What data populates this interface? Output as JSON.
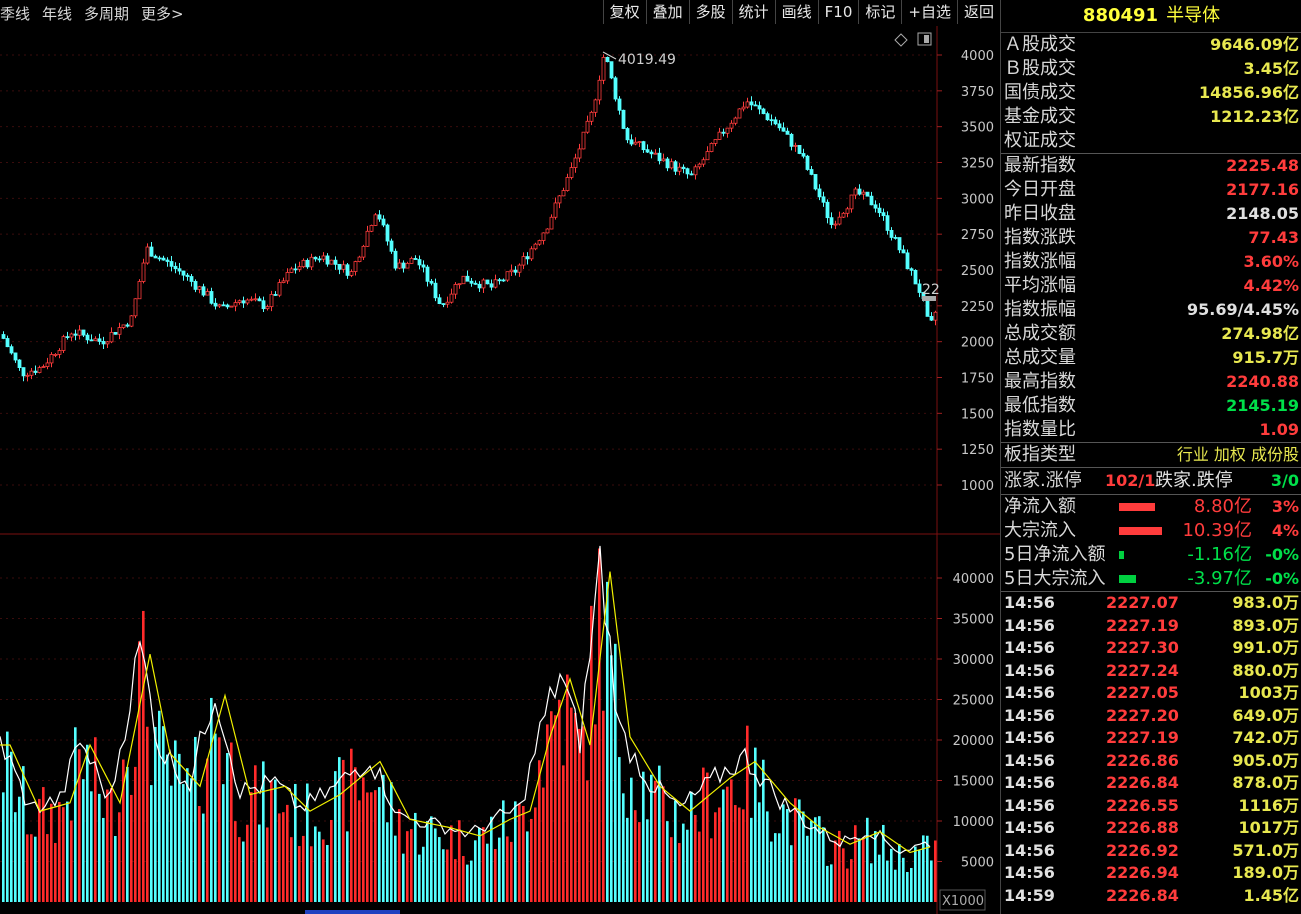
{
  "toolbar": {
    "left": [
      "季线",
      "年线",
      "多周期",
      "更多>"
    ],
    "right": [
      "复权",
      "叠加",
      "多股",
      "统计",
      "画线",
      "F10",
      "标记",
      "+自选",
      "返回"
    ]
  },
  "price_axis": {
    "ticks": [
      "4000",
      "3750",
      "3500",
      "3250",
      "3000",
      "2750",
      "2500",
      "2250",
      "2000",
      "1750",
      "1500",
      "1250",
      "1000"
    ],
    "peak_label": "4019.49",
    "last_label": "22"
  },
  "volume_axis": {
    "ticks": [
      "40000",
      "35000",
      "30000",
      "25000",
      "20000",
      "15000",
      "10000",
      "5000"
    ],
    "unit": "X1000"
  },
  "chart_data": {
    "type": "candlestick+bar",
    "price": {
      "ylim": [
        1000,
        4000
      ],
      "path": [
        [
          0,
          2050
        ],
        [
          20,
          1780
        ],
        [
          40,
          1820
        ],
        [
          70,
          2070
        ],
        [
          100,
          2000
        ],
        [
          130,
          2160
        ],
        [
          145,
          2650
        ],
        [
          180,
          2480
        ],
        [
          200,
          2360
        ],
        [
          220,
          2220
        ],
        [
          240,
          2300
        ],
        [
          265,
          2250
        ],
        [
          290,
          2500
        ],
        [
          320,
          2600
        ],
        [
          350,
          2480
        ],
        [
          375,
          2930
        ],
        [
          395,
          2520
        ],
        [
          415,
          2580
        ],
        [
          440,
          2250
        ],
        [
          460,
          2450
        ],
        [
          490,
          2380
        ],
        [
          515,
          2500
        ],
        [
          545,
          2800
        ],
        [
          570,
          3200
        ],
        [
          590,
          3580
        ],
        [
          603,
          4019
        ],
        [
          625,
          3420
        ],
        [
          650,
          3310
        ],
        [
          690,
          3150
        ],
        [
          720,
          3450
        ],
        [
          745,
          3680
        ],
        [
          775,
          3520
        ],
        [
          800,
          3300
        ],
        [
          830,
          2820
        ],
        [
          855,
          3040
        ],
        [
          875,
          2950
        ],
        [
          900,
          2620
        ],
        [
          920,
          2330
        ],
        [
          928,
          2080
        ],
        [
          935,
          2225
        ]
      ]
    },
    "volume": {
      "ylim": [
        0,
        45000
      ],
      "path": [
        [
          0,
          19000
        ],
        [
          30,
          11000
        ],
        [
          60,
          12000
        ],
        [
          80,
          19000
        ],
        [
          110,
          12000
        ],
        [
          140,
          30000
        ],
        [
          160,
          18000
        ],
        [
          190,
          14000
        ],
        [
          215,
          25000
        ],
        [
          240,
          13000
        ],
        [
          275,
          14000
        ],
        [
          300,
          11000
        ],
        [
          330,
          13000
        ],
        [
          370,
          17000
        ],
        [
          400,
          10000
        ],
        [
          440,
          9000
        ],
        [
          470,
          8000
        ],
        [
          500,
          10000
        ],
        [
          520,
          11000
        ],
        [
          540,
          20000
        ],
        [
          560,
          27000
        ],
        [
          580,
          19000
        ],
        [
          600,
          40000
        ],
        [
          620,
          20000
        ],
        [
          650,
          14000
        ],
        [
          680,
          11000
        ],
        [
          720,
          15000
        ],
        [
          745,
          17000
        ],
        [
          780,
          12000
        ],
        [
          810,
          9000
        ],
        [
          840,
          7000
        ],
        [
          870,
          8500
        ],
        [
          900,
          6000
        ],
        [
          930,
          7000
        ]
      ]
    }
  },
  "panel": {
    "code": "880491",
    "name": "半导体",
    "market": [
      {
        "label": "Ａ股成交",
        "value": "9646.09亿",
        "color": "y"
      },
      {
        "label": "Ｂ股成交",
        "value": "3.45亿",
        "color": "y"
      },
      {
        "label": "国债成交",
        "value": "14856.96亿",
        "color": "y"
      },
      {
        "label": "基金成交",
        "value": "1212.23亿",
        "color": "y"
      },
      {
        "label": "权证成交",
        "value": "",
        "color": "y"
      }
    ],
    "stats": [
      {
        "label": "最新指数",
        "value": "2225.48",
        "color": "r"
      },
      {
        "label": "今日开盘",
        "value": "2177.16",
        "color": "r"
      },
      {
        "label": "昨日收盘",
        "value": "2148.05",
        "color": "w"
      },
      {
        "label": "指数涨跌",
        "value": "77.43",
        "color": "r"
      },
      {
        "label": "指数涨幅",
        "value": "3.60%",
        "color": "r"
      },
      {
        "label": "平均涨幅",
        "value": "4.42%",
        "color": "r"
      },
      {
        "label": "指数振幅",
        "value": "95.69/4.45%",
        "color": "w"
      },
      {
        "label": "总成交额",
        "value": "274.98亿",
        "color": "y"
      },
      {
        "label": "总成交量",
        "value": "915.7万",
        "color": "y"
      },
      {
        "label": "最高指数",
        "value": "2240.88",
        "color": "r"
      },
      {
        "label": "最低指数",
        "value": "2145.19",
        "color": "g"
      },
      {
        "label": "指数量比",
        "value": "1.09",
        "color": "r"
      }
    ],
    "board_type": {
      "label": "板指类型",
      "value": "行业 加权 成份股"
    },
    "breadth": {
      "up_label": "涨家.涨停",
      "up_value": "102/1",
      "down_label": "跌家.跌停",
      "down_value": "3/0"
    },
    "flows": [
      {
        "label": "净流入额",
        "amount": "8.80亿",
        "pct": "3%",
        "color": "r",
        "bar": 0.3
      },
      {
        "label": "大宗流入",
        "amount": "10.39亿",
        "pct": "4%",
        "color": "r",
        "bar": 0.36
      },
      {
        "label": "5日净流入额",
        "amount": "-1.16亿",
        "pct": "-0%",
        "color": "g",
        "bar": 0.04
      },
      {
        "label": "5日大宗流入",
        "amount": "-3.97亿",
        "pct": "-0%",
        "color": "g",
        "bar": 0.14
      }
    ],
    "ticks": [
      {
        "time": "14:56",
        "price": "2227.07",
        "vol": "983.0万"
      },
      {
        "time": "14:56",
        "price": "2227.19",
        "vol": "893.0万"
      },
      {
        "time": "14:56",
        "price": "2227.30",
        "vol": "991.0万"
      },
      {
        "time": "14:56",
        "price": "2227.24",
        "vol": "880.0万"
      },
      {
        "time": "14:56",
        "price": "2227.05",
        "vol": "1003万"
      },
      {
        "time": "14:56",
        "price": "2227.20",
        "vol": "649.0万"
      },
      {
        "time": "14:56",
        "price": "2227.19",
        "vol": "742.0万"
      },
      {
        "time": "14:56",
        "price": "2226.86",
        "vol": "905.0万"
      },
      {
        "time": "14:56",
        "price": "2226.84",
        "vol": "878.0万"
      },
      {
        "time": "14:56",
        "price": "2226.55",
        "vol": "1116万"
      },
      {
        "time": "14:56",
        "price": "2226.88",
        "vol": "1017万"
      },
      {
        "time": "14:56",
        "price": "2226.92",
        "vol": "571.0万"
      },
      {
        "time": "14:56",
        "price": "2226.94",
        "vol": "189.0万"
      },
      {
        "time": "14:59",
        "price": "2226.84",
        "vol": "1.45亿"
      }
    ]
  }
}
